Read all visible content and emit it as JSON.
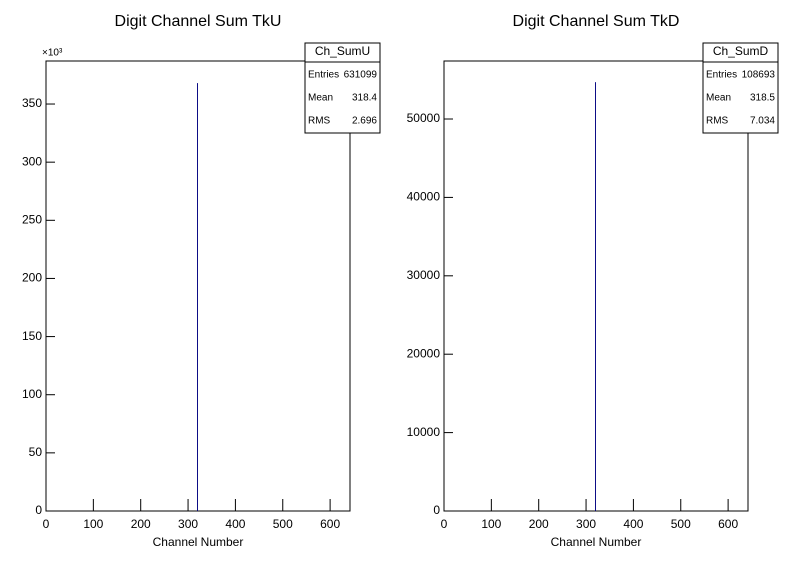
{
  "chart_data": [
    {
      "type": "histogram",
      "title": "Digit Channel Sum TkU",
      "x_label": "Channel Number",
      "y_multiplier": "×10³",
      "bins": [
        319,
        321
      ],
      "values": [
        368
      ],
      "color": "#000080",
      "xlim": [
        0,
        642
      ],
      "xticks": [
        0,
        100,
        200,
        300,
        400,
        500,
        600
      ],
      "ylim": [
        0,
        387
      ],
      "yticks": [
        0,
        50,
        100,
        150,
        200,
        250,
        300,
        350
      ],
      "stats": {
        "name": "Ch_SumU",
        "rows": [
          {
            "label": "Entries",
            "value": 631099
          },
          {
            "label": "Mean",
            "value": 318.4
          },
          {
            "label": "RMS",
            "value": 2.696
          }
        ]
      }
    },
    {
      "type": "histogram",
      "title": "Digit Channel Sum TkD",
      "x_label": "Channel Number",
      "bins": [
        319,
        321
      ],
      "values": [
        54700
      ],
      "color": "#000080",
      "xlim": [
        0,
        642
      ],
      "xticks": [
        0,
        100,
        200,
        300,
        400,
        500,
        600
      ],
      "ylim": [
        0,
        57400
      ],
      "yticks": [
        0,
        10000,
        20000,
        30000,
        40000,
        50000
      ],
      "stats": {
        "name": "Ch_SumD",
        "rows": [
          {
            "label": "Entries",
            "value": 108693
          },
          {
            "label": "Mean",
            "value": 318.5
          },
          {
            "label": "RMS",
            "value": 7.034
          }
        ]
      }
    }
  ]
}
